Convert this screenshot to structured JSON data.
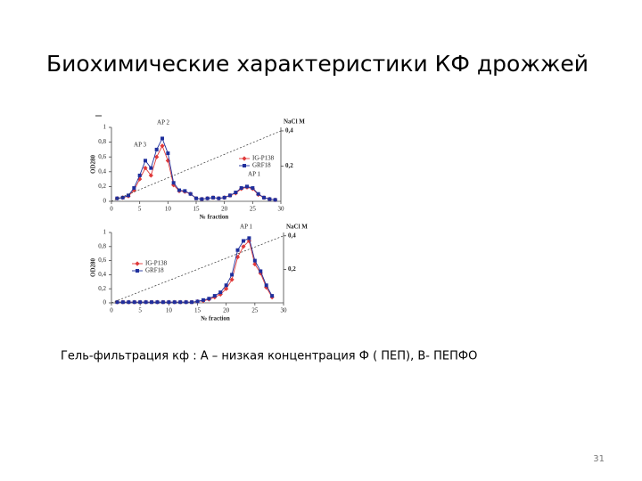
{
  "title": "Биохимические характеристики  КФ дрожжей",
  "caption": "Гель-фильтрация кф  : А – низкая концентрация Ф ( ПЕП), В- ПЕПФО",
  "page_number": "31",
  "chart_data": [
    {
      "type": "line",
      "x": [
        1,
        2,
        3,
        4,
        5,
        6,
        7,
        8,
        9,
        10,
        11,
        12,
        13,
        14,
        15,
        16,
        17,
        18,
        19,
        20,
        21,
        22,
        23,
        24,
        25,
        26,
        27,
        28,
        29
      ],
      "xlabel": "№ fraction",
      "ylabel": "OD280",
      "y2label": "NaCl M",
      "xlim": [
        0,
        30
      ],
      "xticks": [
        0,
        5,
        10,
        15,
        20,
        25,
        30
      ],
      "ylim": [
        0,
        1
      ],
      "yticks": [
        0,
        {
          "value": 0.2,
          "label": "0,2"
        },
        {
          "value": 0.4,
          "label": "0,4"
        },
        {
          "value": 0.6,
          "label": "0,6"
        },
        {
          "value": 0.8,
          "label": "0,8"
        },
        1
      ],
      "y2lim": [
        0,
        0.42
      ],
      "y2ticks": [
        {
          "value": 0.2,
          "label": "0,2"
        },
        {
          "value": 0.4,
          "label": "0,4"
        }
      ],
      "series": [
        {
          "name": "IG-P138",
          "color": "#e03a3a",
          "marker": "diamond",
          "values": [
            0.04,
            0.05,
            0.07,
            0.15,
            0.3,
            0.45,
            0.35,
            0.6,
            0.75,
            0.55,
            0.22,
            0.14,
            0.13,
            0.1,
            0.04,
            0.03,
            0.04,
            0.05,
            0.04,
            0.05,
            0.08,
            0.11,
            0.17,
            0.19,
            0.17,
            0.09,
            0.05,
            0.03,
            0.02
          ]
        },
        {
          "name": "GRF18",
          "color": "#1f2f9c",
          "marker": "square",
          "values": [
            0.04,
            0.05,
            0.08,
            0.18,
            0.35,
            0.55,
            0.45,
            0.7,
            0.85,
            0.65,
            0.25,
            0.15,
            0.14,
            0.1,
            0.04,
            0.03,
            0.04,
            0.05,
            0.04,
            0.05,
            0.08,
            0.12,
            0.18,
            0.2,
            0.18,
            0.1,
            0.05,
            0.03,
            0.02
          ]
        },
        {
          "color": "#333333",
          "dash": true,
          "axis": "y2",
          "x": [
            0,
            30
          ],
          "values": [
            0,
            0.4
          ]
        }
      ],
      "annotations": [
        "AP 2",
        "AP 3",
        "AP 1"
      ]
    },
    {
      "type": "line",
      "x": [
        1,
        2,
        3,
        4,
        5,
        6,
        7,
        8,
        9,
        10,
        11,
        12,
        13,
        14,
        15,
        16,
        17,
        18,
        19,
        20,
        21,
        22,
        23,
        24,
        25,
        26,
        27,
        28
      ],
      "xlabel": "№ fraction",
      "ylabel": "OD280",
      "y2label": "NaCl M",
      "xlim": [
        0,
        30
      ],
      "xticks": [
        0,
        5,
        10,
        15,
        20,
        25,
        30
      ],
      "ylim": [
        0,
        1
      ],
      "yticks": [
        0,
        {
          "value": 0.2,
          "label": "0,2"
        },
        {
          "value": 0.4,
          "label": "0,4"
        },
        {
          "value": 0.6,
          "label": "0,6"
        },
        {
          "value": 0.8,
          "label": "0,8"
        },
        1
      ],
      "y2lim": [
        0,
        0.42
      ],
      "y2ticks": [
        {
          "value": 0.2,
          "label": "0,2"
        },
        {
          "value": 0.4,
          "label": "0,4"
        }
      ],
      "series": [
        {
          "name": "IG-P138",
          "color": "#e03a3a",
          "marker": "diamond",
          "values": [
            0.01,
            0.01,
            0.01,
            0.01,
            0.01,
            0.01,
            0.01,
            0.01,
            0.01,
            0.01,
            0.01,
            0.01,
            0.01,
            0.01,
            0.02,
            0.03,
            0.05,
            0.08,
            0.12,
            0.2,
            0.33,
            0.65,
            0.8,
            0.88,
            0.55,
            0.42,
            0.22,
            0.08
          ]
        },
        {
          "name": "GRF18",
          "color": "#1f2f9c",
          "marker": "square",
          "values": [
            0.01,
            0.01,
            0.01,
            0.01,
            0.01,
            0.01,
            0.01,
            0.01,
            0.01,
            0.01,
            0.01,
            0.01,
            0.01,
            0.01,
            0.02,
            0.04,
            0.06,
            0.1,
            0.15,
            0.25,
            0.4,
            0.75,
            0.88,
            0.92,
            0.6,
            0.45,
            0.25,
            0.1
          ]
        },
        {
          "color": "#333333",
          "dash": true,
          "axis": "y2",
          "x": [
            0,
            30
          ],
          "values": [
            0,
            0.4
          ]
        }
      ],
      "annotations": [
        "AP 1"
      ]
    }
  ]
}
